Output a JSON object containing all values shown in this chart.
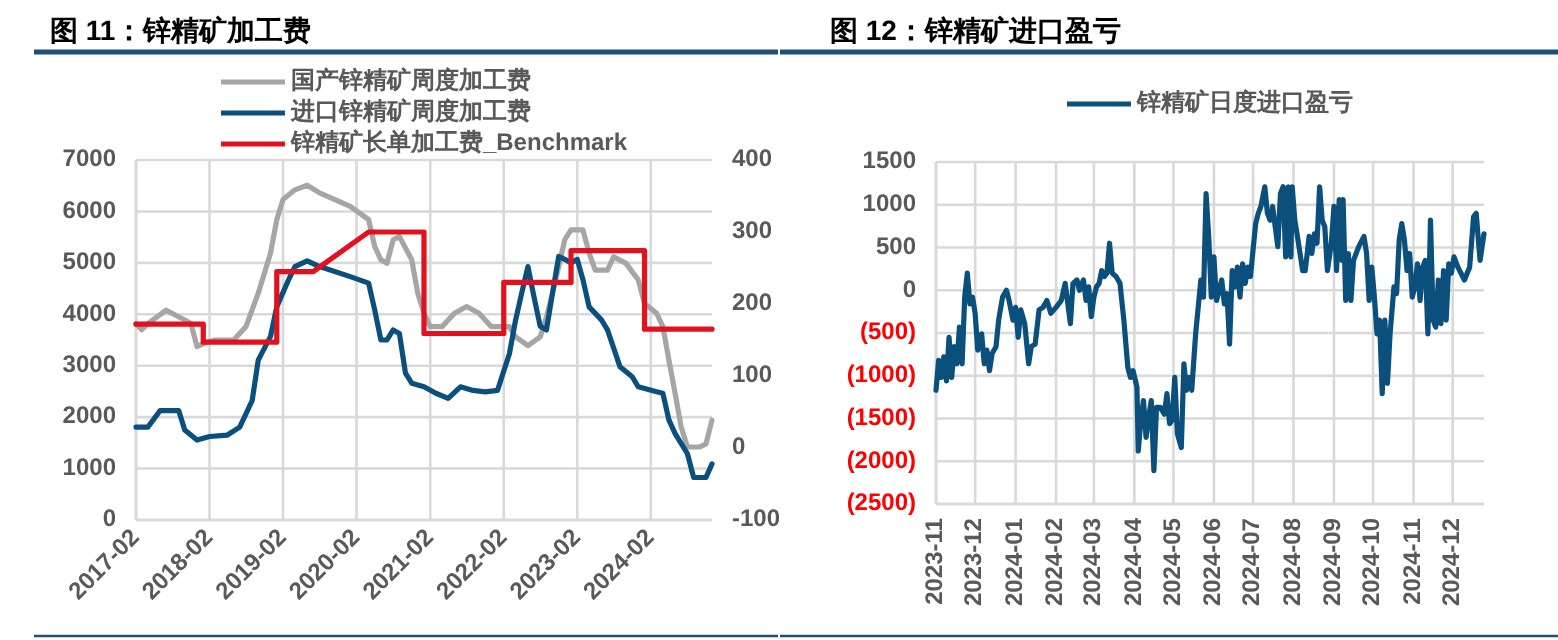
{
  "chart_data": [
    {
      "type": "line",
      "title": "图 11：锌精矿加工费",
      "xlim": [
        "2017-02",
        "2024-12"
      ],
      "xticks": [
        "2017-02",
        "2018-02",
        "2019-02",
        "2020-02",
        "2021-02",
        "2022-02",
        "2023-02",
        "2024-02"
      ],
      "ylim": [
        0,
        7000
      ],
      "yticks": [
        0,
        1000,
        2000,
        3000,
        4000,
        5000,
        6000,
        7000
      ],
      "y2lim": [
        -100,
        400
      ],
      "y2ticks": [
        -100,
        0,
        100,
        200,
        300,
        400
      ],
      "grid": true,
      "legend": "top",
      "series": [
        {
          "name": "国产锌精矿周度加工费",
          "color": "#a6a6a6",
          "x": [
            "2017-02",
            "2017-03",
            "2017-04",
            "2017-07",
            "2017-10",
            "2017-11",
            "2017-12",
            "2018-01",
            "2018-03",
            "2018-06",
            "2018-08",
            "2018-10",
            "2018-12",
            "2019-01",
            "2019-02",
            "2019-04",
            "2019-06",
            "2019-08",
            "2020-01",
            "2020-04",
            "2020-05",
            "2020-06",
            "2020-07",
            "2020-08",
            "2020-09",
            "2020-11",
            "2020-12",
            "2021-01",
            "2021-02",
            "2021-04",
            "2021-06",
            "2021-08",
            "2021-10",
            "2021-12",
            "2022-03",
            "2022-04",
            "2022-06",
            "2022-08",
            "2022-09",
            "2022-10",
            "2022-11",
            "2022-12",
            "2023-01",
            "2023-03",
            "2023-04",
            "2023-05",
            "2023-07",
            "2023-08",
            "2023-10",
            "2023-12",
            "2024-01",
            "2024-03",
            "2024-04",
            "2024-05",
            "2024-06",
            "2024-07",
            "2024-08",
            "2024-10",
            "2024-11",
            "2024-12"
          ],
          "values": [
            3820,
            3700,
            3820,
            4080,
            3890,
            3820,
            3370,
            3430,
            3500,
            3500,
            3760,
            4410,
            5190,
            5840,
            6230,
            6420,
            6510,
            6360,
            6100,
            5840,
            5320,
            5060,
            4990,
            5450,
            5510,
            5060,
            4410,
            4020,
            3760,
            3760,
            4020,
            4150,
            4020,
            3760,
            3760,
            3560,
            3390,
            3560,
            3950,
            4410,
            4930,
            5450,
            5640,
            5640,
            5190,
            4860,
            4860,
            5120,
            4990,
            4670,
            4210,
            4020,
            3760,
            3110,
            2460,
            1810,
            1420,
            1420,
            1480,
            1940
          ]
        },
        {
          "name": "进口锌精矿周度加工费",
          "color": "#0b4f7c",
          "axis": "y2",
          "x": [
            "2017-02",
            "2017-04",
            "2017-06",
            "2017-09",
            "2017-10",
            "2017-12",
            "2018-02",
            "2018-05",
            "2018-07",
            "2018-09",
            "2018-10",
            "2018-12",
            "2019-01",
            "2019-03",
            "2019-04",
            "2019-06",
            "2019-08",
            "2020-01",
            "2020-04",
            "2020-05",
            "2020-06",
            "2020-07",
            "2020-08",
            "2020-09",
            "2020-10",
            "2020-11",
            "2021-01",
            "2021-03",
            "2021-05",
            "2021-07",
            "2021-09",
            "2021-11",
            "2022-01",
            "2022-03",
            "2022-04",
            "2022-05",
            "2022-06",
            "2022-07",
            "2022-08",
            "2022-09",
            "2022-10",
            "2022-11",
            "2022-12",
            "2023-01",
            "2023-02",
            "2023-03",
            "2023-04",
            "2023-06",
            "2023-07",
            "2023-09",
            "2023-11",
            "2023-12",
            "2024-03",
            "2024-04",
            "2024-05",
            "2024-06",
            "2024-08",
            "2024-09",
            "2024-11",
            "2024-12"
          ],
          "values": [
            29,
            29,
            52,
            52,
            25,
            11,
            16,
            18,
            29,
            66,
            122,
            155,
            196,
            234,
            252,
            260,
            252,
            238,
            229,
            192,
            150,
            150,
            164,
            159,
            104,
            90,
            85,
            76,
            69,
            85,
            80,
            78,
            80,
            131,
            178,
            215,
            252,
            210,
            169,
            164,
            215,
            266,
            262,
            257,
            262,
            234,
            196,
            178,
            164,
            113,
            99,
            85,
            78,
            76,
            39,
            20,
            -8,
            -41,
            -41,
            -22
          ]
        },
        {
          "name": "锌精矿长单加工费_Benchmark",
          "color": "#e3101e",
          "axis": "y2",
          "x": [
            "2017-02",
            "2018-01",
            "2018-01",
            "2019-01",
            "2019-01",
            "2019-07",
            "2020-04",
            "2021-01",
            "2021-01",
            "2022-02",
            "2022-02",
            "2023-01",
            "2023-01",
            "2024-01",
            "2024-01",
            "2024-12"
          ],
          "values": [
            172,
            172,
            147,
            147,
            245,
            245,
            300,
            300,
            159,
            159,
            230,
            230,
            274,
            274,
            165,
            165
          ]
        }
      ]
    },
    {
      "type": "line",
      "title": "图 12：锌精矿进口盈亏",
      "xlim": [
        "2023-11-01",
        "2024-12-25"
      ],
      "xticks": [
        "2023-11",
        "2023-12",
        "2024-01",
        "2024-02",
        "2024-03",
        "2024-04",
        "2024-05",
        "2024-06",
        "2024-07",
        "2024-08",
        "2024-09",
        "2024-10",
        "2024-11",
        "2024-12"
      ],
      "ylim": [
        -2500,
        1500
      ],
      "yticks": [
        {
          "value": -2500,
          "label": "(2500)"
        },
        {
          "value": -2000,
          "label": "(2000)"
        },
        {
          "value": -1500,
          "label": "(1500)"
        },
        {
          "value": -1000,
          "label": "(1000)"
        },
        {
          "value": -500,
          "label": "(500)"
        },
        0,
        500,
        1000,
        1500
      ],
      "grid": true,
      "legend": "top",
      "series": [
        {
          "name": "锌精矿日度进口盈亏",
          "color": "#0b4f7c",
          "x": [
            "2023-11-01",
            "2023-11-03",
            "2023-11-05",
            "2023-11-07",
            "2023-11-09",
            "2023-11-11",
            "2023-11-13",
            "2023-11-15",
            "2023-11-17",
            "2023-11-19",
            "2023-11-21",
            "2023-11-23",
            "2023-11-25",
            "2023-11-27",
            "2023-11-29",
            "2023-12-01",
            "2023-12-03",
            "2023-12-06",
            "2023-12-08",
            "2023-12-10",
            "2023-12-12",
            "2023-12-14",
            "2023-12-17",
            "2023-12-19",
            "2023-12-22",
            "2023-12-25",
            "2023-12-27",
            "2023-12-30",
            "2024-01-01",
            "2024-01-03",
            "2024-01-05",
            "2024-01-08",
            "2024-01-11",
            "2024-01-13",
            "2024-01-16",
            "2024-01-19",
            "2024-01-22",
            "2024-01-25",
            "2024-01-28",
            "2024-02-01",
            "2024-02-05",
            "2024-02-08",
            "2024-02-12",
            "2024-02-14",
            "2024-02-17",
            "2024-02-19",
            "2024-02-22",
            "2024-02-24",
            "2024-02-26",
            "2024-02-28",
            "2024-03-01",
            "2024-03-03",
            "2024-03-05",
            "2024-03-07",
            "2024-03-09",
            "2024-03-11",
            "2024-03-13",
            "2024-03-15",
            "2024-03-18",
            "2024-03-21",
            "2024-03-24",
            "2024-03-27",
            "2024-03-29",
            "2024-03-31",
            "2024-04-03",
            "2024-04-04",
            "2024-04-06",
            "2024-04-08",
            "2024-04-10",
            "2024-04-12",
            "2024-04-14",
            "2024-04-16",
            "2024-04-18",
            "2024-04-21",
            "2024-04-24",
            "2024-04-26",
            "2024-04-28",
            "2024-04-30",
            "2024-05-02",
            "2024-05-04",
            "2024-05-07",
            "2024-05-09",
            "2024-05-11",
            "2024-05-13",
            "2024-05-15",
            "2024-05-18",
            "2024-05-22",
            "2024-05-24",
            "2024-05-26",
            "2024-05-28",
            "2024-05-30",
            "2024-06-01",
            "2024-06-03",
            "2024-06-05",
            "2024-06-07",
            "2024-06-09",
            "2024-06-11",
            "2024-06-13",
            "2024-06-15",
            "2024-06-17",
            "2024-06-19",
            "2024-06-21",
            "2024-06-23",
            "2024-06-25",
            "2024-06-27",
            "2024-06-29",
            "2024-07-01",
            "2024-07-03",
            "2024-07-05",
            "2024-07-07",
            "2024-07-10",
            "2024-07-12",
            "2024-07-14",
            "2024-07-16",
            "2024-07-18",
            "2024-07-20",
            "2024-07-22",
            "2024-07-24",
            "2024-07-26",
            "2024-07-28",
            "2024-07-30",
            "2024-07-31",
            "2024-08-02",
            "2024-08-04",
            "2024-08-06",
            "2024-08-08",
            "2024-08-10",
            "2024-08-13",
            "2024-08-15",
            "2024-08-17",
            "2024-08-19",
            "2024-08-21",
            "2024-08-23",
            "2024-08-25",
            "2024-08-27",
            "2024-08-30",
            "2024-09-01",
            "2024-09-03",
            "2024-09-05",
            "2024-09-07",
            "2024-09-08",
            "2024-09-10",
            "2024-09-12",
            "2024-09-14",
            "2024-09-16",
            "2024-09-20",
            "2024-09-24",
            "2024-09-26",
            "2024-09-28",
            "2024-09-30",
            "2024-10-02",
            "2024-10-04",
            "2024-10-06",
            "2024-10-08",
            "2024-10-10",
            "2024-10-12",
            "2024-10-14",
            "2024-10-17",
            "2024-10-19",
            "2024-10-21",
            "2024-10-23",
            "2024-10-25",
            "2024-10-27",
            "2024-10-29",
            "2024-10-31",
            "2024-11-02",
            "2024-11-04",
            "2024-11-06",
            "2024-11-08",
            "2024-11-10",
            "2024-11-12",
            "2024-11-14",
            "2024-11-16",
            "2024-11-18",
            "2024-11-20",
            "2024-11-22",
            "2024-11-24",
            "2024-11-26",
            "2024-11-28",
            "2024-11-30",
            "2024-12-02",
            "2024-12-05",
            "2024-12-10",
            "2024-12-14",
            "2024-12-17",
            "2024-12-19",
            "2024-12-22",
            "2024-12-25"
          ],
          "values": [
            -1170,
            -820,
            -1020,
            -780,
            -1060,
            -550,
            -1020,
            -660,
            -860,
            -430,
            -860,
            -80,
            200,
            -160,
            -80,
            -270,
            -700,
            -510,
            -860,
            -700,
            -940,
            -740,
            -660,
            -350,
            -80,
            0,
            -120,
            -350,
            -200,
            -550,
            -230,
            -390,
            -860,
            -660,
            -630,
            -230,
            -200,
            -120,
            -270,
            -200,
            -120,
            80,
            -390,
            80,
            120,
            0,
            120,
            -120,
            40,
            -310,
            -80,
            40,
            80,
            230,
            160,
            200,
            550,
            200,
            160,
            80,
            -350,
            -900,
            -1020,
            -940,
            -1130,
            -1880,
            -1520,
            -1290,
            -1720,
            -1480,
            -1290,
            -2110,
            -1370,
            -1370,
            -1450,
            -1210,
            -1560,
            -1520,
            -1020,
            -1680,
            -1840,
            -860,
            -1170,
            -1020,
            -1170,
            -510,
            120,
            -80,
            1130,
            630,
            -80,
            390,
            -120,
            0,
            120,
            -160,
            -40,
            -630,
            230,
            40,
            270,
            -80,
            310,
            80,
            270,
            160,
            470,
            780,
            900,
            980,
            1210,
            900,
            820,
            980,
            740,
            510,
            1130,
            1210,
            390,
            1210,
            390,
            1210,
            820,
            630,
            430,
            230,
            230,
            630,
            430,
            660,
            550,
            1210,
            820,
            740,
            230,
            550,
            980,
            230,
            1060,
            350,
            1060,
            -120,
            430,
            -120,
            350,
            510,
            630,
            430,
            -120,
            270,
            -80,
            -510,
            -350,
            -1210,
            -350,
            -1090,
            -510,
            40,
            -40,
            590,
            780,
            590,
            230,
            430,
            -80,
            40,
            310,
            -120,
            270,
            350,
            -510,
            820,
            -350,
            -430,
            120,
            -390,
            230,
            -350,
            310,
            200,
            390,
            270,
            120,
            270,
            860,
            900,
            350,
            660
          ]
        }
      ]
    }
  ]
}
